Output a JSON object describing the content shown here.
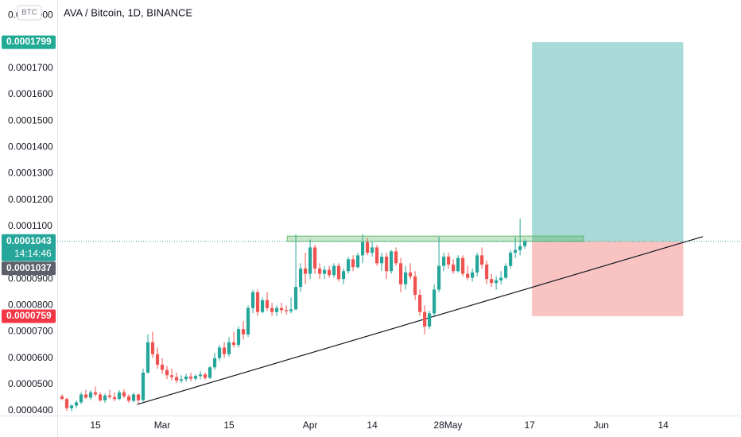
{
  "chart_data": {
    "type": "candlestick",
    "title": "AVA / Bitcoin, 1D, BINANCE",
    "currency": "BTC",
    "x": [
      39,
      40,
      41,
      42,
      43,
      44,
      45,
      46,
      47,
      48,
      49,
      50,
      51,
      52,
      53,
      54,
      55,
      56,
      57,
      58,
      59,
      60,
      61,
      62,
      63,
      64,
      65,
      66,
      67,
      68,
      69,
      70,
      71,
      72,
      73,
      74,
      75,
      76,
      77,
      78,
      79,
      80,
      81,
      82,
      83,
      84,
      85,
      86,
      87,
      88,
      89,
      90,
      91,
      92,
      93,
      94,
      95,
      96,
      97,
      98,
      99,
      100,
      101,
      102,
      103,
      104,
      105,
      106,
      107,
      108,
      109,
      110,
      111,
      112,
      113,
      114,
      115,
      116,
      117,
      118,
      119,
      120,
      121,
      122,
      123,
      124,
      125,
      126,
      127,
      128,
      129,
      130,
      131,
      132,
      133,
      134,
      135,
      136
    ],
    "open": [
      4.55e-05,
      4.45e-05,
      4.1e-05,
      4.2e-05,
      4.32e-05,
      4.62e-05,
      4.5e-05,
      4.7e-05,
      4.62e-05,
      4.4e-05,
      4.58e-05,
      4.52e-05,
      4.45e-05,
      4.7e-05,
      4.55e-05,
      4.38e-05,
      4.62e-05,
      4.4e-05,
      5.45e-05,
      6.6e-05,
      6.15e-05,
      5.75e-05,
      5.55e-05,
      5.35e-05,
      5.28e-05,
      5.15e-05,
      5.2e-05,
      5.3e-05,
      5.22e-05,
      5.32e-05,
      5.38e-05,
      5.25e-05,
      5.65e-05,
      6e-05,
      6.4e-05,
      6.15e-05,
      6.6e-05,
      6.5e-05,
      7.1e-05,
      6.9e-05,
      7.9e-05,
      8.5e-05,
      7.75e-05,
      8.2e-05,
      7.9e-05,
      7.75e-05,
      7.9e-05,
      7.82e-05,
      7.78e-05,
      7.85e-05,
      8.7e-05,
      9.4e-05,
      9.2e-05,
      0.000102,
      9.4e-05,
      9.2e-05,
      9.35e-05,
      9.15e-05,
      9.5e-05,
      9e-05,
      9.3e-05,
      9.75e-05,
      9.45e-05,
      9.9e-05,
      0.000104,
      0.0001,
      0.000102,
      9.6e-05,
      9.85e-05,
      9.3e-05,
      0.0001005,
      9.6e-05,
      8.8e-05,
      9.25e-05,
      9.1e-05,
      8.4e-05,
      7.75e-05,
      7.2e-05,
      7.7e-05,
      8.6e-05,
      9.5e-05,
      9.85e-05,
      9.55e-05,
      9.3e-05,
      9.8e-05,
      9.2e-05,
      9.05e-05,
      9.25e-05,
      9.9e-05,
      9.55e-05,
      9e-05,
      8.85e-05,
      8.95e-05,
      9.05e-05,
      9.5e-05,
      0.0001,
      0.000101,
      0.0001025
    ],
    "high": [
      4.62e-05,
      4.5e-05,
      4.25e-05,
      4.4e-05,
      4.7e-05,
      4.8e-05,
      4.78e-05,
      4.92e-05,
      4.7e-05,
      4.65e-05,
      4.8e-05,
      4.7e-05,
      4.78e-05,
      4.82e-05,
      4.62e-05,
      4.7e-05,
      4.65e-05,
      5.6e-05,
      6.9e-05,
      7e-05,
      6.4e-05,
      6e-05,
      5.7e-05,
      5.6e-05,
      5.45e-05,
      5.35e-05,
      5.4e-05,
      5.45e-05,
      5.4e-05,
      5.5e-05,
      5.45e-05,
      5.7e-05,
      6.2e-05,
      6.5e-05,
      6.6e-05,
      6.8e-05,
      7e-05,
      7.2e-05,
      7.4e-05,
      8e-05,
      8.6e-05,
      8.6e-05,
      8.3e-05,
      8.5e-05,
      8.1e-05,
      8e-05,
      8.1e-05,
      8e-05,
      8.3e-05,
      0.000107,
      9.6e-05,
      0.0001,
      0.000105,
      0.000103,
      9.6e-05,
      9.5e-05,
      9.5e-05,
      9.6e-05,
      9.6e-05,
      9.4e-05,
      9.85e-05,
      9.9e-05,
      0.0001,
      0.000107,
      0.0001055,
      0.000104,
      0.000103,
      0.0001,
      0.0001,
      0.000101,
      0.000102,
      9.8e-05,
      9.5e-05,
      9.6e-05,
      9.3e-05,
      8.6e-05,
      8e-05,
      7.8e-05,
      8.8e-05,
      0.000106,
      0.0001,
      0.0001,
      9.75e-05,
      9.9e-05,
      9.9e-05,
      9.5e-05,
      9.4e-05,
      0.0001,
      0.000102,
      9.7e-05,
      9.2e-05,
      9.1e-05,
      9.3e-05,
      9.6e-05,
      0.000101,
      0.000106,
      0.000113,
      0.000105
    ],
    "low": [
      4.4e-05,
      4e-05,
      3.98e-05,
      4.1e-05,
      4.25e-05,
      4.45e-05,
      4.4e-05,
      4.55e-05,
      4.35e-05,
      4.3e-05,
      4.45e-05,
      4.36e-05,
      4.4e-05,
      4.48e-05,
      4.3e-05,
      4.32e-05,
      4.25e-05,
      4.35e-05,
      5.4e-05,
      6e-05,
      5.6e-05,
      5.4e-05,
      5.2e-05,
      5.15e-05,
      5.05e-05,
      5.05e-05,
      5.1e-05,
      5.12e-05,
      5.15e-05,
      5.2e-05,
      5.18e-05,
      5.2e-05,
      5.55e-05,
      5.9e-05,
      6e-05,
      6.05e-05,
      6.4e-05,
      6.4e-05,
      6.7e-05,
      6.8e-05,
      7.7e-05,
      7.6e-05,
      7.7e-05,
      7.8e-05,
      7.6e-05,
      7.6e-05,
      7.7e-05,
      7.65e-05,
      7.7e-05,
      7.8e-05,
      8.5e-05,
      8.8e-05,
      9e-05,
      9.2e-05,
      9e-05,
      9e-05,
      9.05e-05,
      9.05e-05,
      8.9e-05,
      8.8e-05,
      9.2e-05,
      9.3e-05,
      9.4e-05,
      9.6e-05,
      9.9e-05,
      9.85e-05,
      9.5e-05,
      9.3e-05,
      9e-05,
      9.2e-05,
      9.5e-05,
      8.5e-05,
      8.6e-05,
      9e-05,
      8.2e-05,
      7.6e-05,
      6.9e-05,
      7.1e-05,
      7.6e-05,
      8.5e-05,
      9.3e-05,
      9.4e-05,
      9.2e-05,
      9.25e-05,
      9.1e-05,
      8.95e-05,
      8.9e-05,
      9.1e-05,
      9.4e-05,
      8.8e-05,
      8.7e-05,
      8.6e-05,
      8.8e-05,
      9e-05,
      9.4e-05,
      9.8e-05,
      9.9e-05,
      0.0001015
    ],
    "close": [
      4.45e-05,
      4.1e-05,
      4.2e-05,
      4.32e-05,
      4.62e-05,
      4.5e-05,
      4.7e-05,
      4.62e-05,
      4.4e-05,
      4.58e-05,
      4.52e-05,
      4.45e-05,
      4.7e-05,
      4.55e-05,
      4.38e-05,
      4.62e-05,
      4.4e-05,
      5.45e-05,
      6.6e-05,
      6.15e-05,
      5.75e-05,
      5.55e-05,
      5.35e-05,
      5.28e-05,
      5.15e-05,
      5.2e-05,
      5.3e-05,
      5.22e-05,
      5.32e-05,
      5.38e-05,
      5.25e-05,
      5.65e-05,
      6e-05,
      6.4e-05,
      6.15e-05,
      6.6e-05,
      6.5e-05,
      7.1e-05,
      6.9e-05,
      7.9e-05,
      8.5e-05,
      7.75e-05,
      8.2e-05,
      7.9e-05,
      7.75e-05,
      7.9e-05,
      7.82e-05,
      7.78e-05,
      7.85e-05,
      8.7e-05,
      9.4e-05,
      9.2e-05,
      0.000102,
      9.4e-05,
      9.2e-05,
      9.35e-05,
      9.15e-05,
      9.5e-05,
      9e-05,
      9.3e-05,
      9.75e-05,
      9.45e-05,
      9.9e-05,
      0.000104,
      0.0001,
      0.000102,
      9.6e-05,
      9.85e-05,
      9.3e-05,
      0.0001005,
      9.6e-05,
      8.8e-05,
      9.25e-05,
      9.1e-05,
      8.4e-05,
      7.75e-05,
      7.2e-05,
      7.7e-05,
      8.6e-05,
      9.5e-05,
      9.85e-05,
      9.55e-05,
      9.3e-05,
      9.8e-05,
      9.2e-05,
      9.05e-05,
      9.25e-05,
      9.9e-05,
      9.55e-05,
      9e-05,
      8.85e-05,
      8.95e-05,
      9.05e-05,
      9.5e-05,
      0.0001,
      0.000101,
      0.0001025,
      0.0001043
    ],
    "up_color": "#26a69a",
    "down_color": "#ef5350",
    "xlim": [
      38,
      181.3
    ],
    "xticks": [
      {
        "value": 46,
        "label": "15"
      },
      {
        "value": 60,
        "label": "Mar"
      },
      {
        "value": 74,
        "label": "15"
      },
      {
        "value": 91,
        "label": "Apr"
      },
      {
        "value": 104,
        "label": "14"
      },
      {
        "value": 118,
        "label": "28"
      },
      {
        "value": 121,
        "label": "May"
      },
      {
        "value": 137,
        "label": "17"
      },
      {
        "value": 152,
        "label": "Jun"
      },
      {
        "value": 165,
        "label": "14"
      }
    ],
    "ylim": [
      3.82e-05,
      0.0001959
    ],
    "yticks": [
      {
        "value": 4e-05,
        "label": "0.0000400"
      },
      {
        "value": 5e-05,
        "label": "0.0000500"
      },
      {
        "value": 6e-05,
        "label": "0.0000600"
      },
      {
        "value": 7e-05,
        "label": "0.0000700"
      },
      {
        "value": 8e-05,
        "label": "0.0000800"
      },
      {
        "value": 9e-05,
        "label": "0.0000900"
      },
      {
        "value": 0.0001,
        "label": "0.0001000"
      },
      {
        "value": 0.00011,
        "label": "0.0001100"
      },
      {
        "value": 0.00012,
        "label": "0.0001200"
      },
      {
        "value": 0.00013,
        "label": "0.0001300"
      },
      {
        "value": 0.00014,
        "label": "0.0001400"
      },
      {
        "value": 0.00015,
        "label": "0.0001500"
      },
      {
        "value": 0.00016,
        "label": "0.0001600"
      },
      {
        "value": 0.00017,
        "label": "0.0001700"
      },
      {
        "value": 0.00018,
        "label": "0.0001800"
      },
      {
        "value": 0.00019,
        "label": "0.0001900"
      }
    ],
    "grid": false,
    "position": {
      "entry": 0.0001043,
      "target": 0.0001799,
      "stop": 7.59e-05,
      "x": [
        137.5,
        169.2
      ],
      "profit_color": "#26a69a",
      "loss_color": "#ef5350",
      "target_tag_color": "#22ab94",
      "stop_tag_color": "#f23645"
    },
    "last_price": {
      "value": 0.0001043,
      "countdown": "14:14:46",
      "color": "#26a69a"
    },
    "marker_price": {
      "value": 0.0001037,
      "color": "#5d606b"
    },
    "resistance_zone": {
      "y": [
        0.0001043,
        0.0001063
      ],
      "x": [
        86.2,
        148.3
      ],
      "color": "#4caf50"
    },
    "trendline": {
      "x": [
        54.7,
        173.3
      ],
      "y": [
        4.24e-05,
        0.0001061
      ],
      "color": "#131722"
    }
  }
}
